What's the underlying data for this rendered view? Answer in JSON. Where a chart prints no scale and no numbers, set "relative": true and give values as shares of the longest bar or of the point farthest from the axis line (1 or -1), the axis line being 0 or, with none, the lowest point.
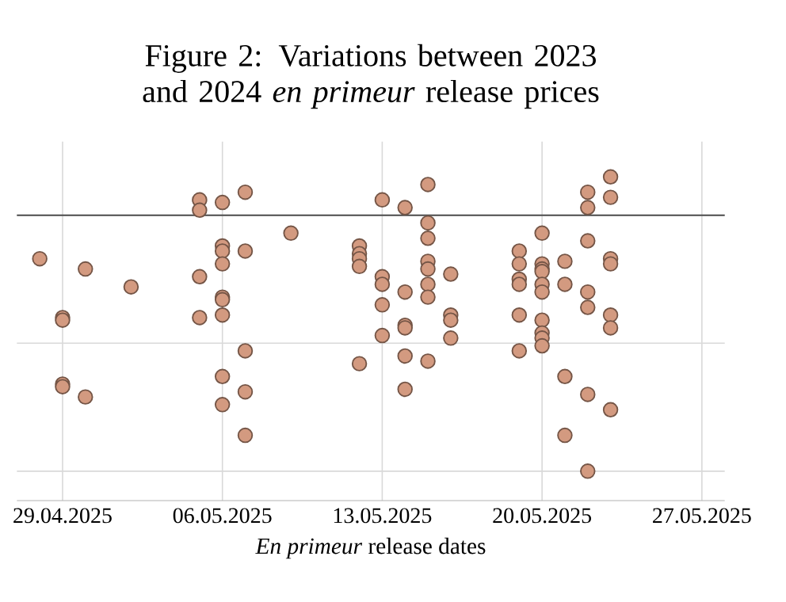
{
  "chart_data": {
    "type": "scatter",
    "title": "Figure 2: Variations between 2023 and 2024 *en primeur* release prices",
    "xlabel": "*En primeur* release dates",
    "relative": true,
    "grid": true,
    "color": "#d39a80",
    "xlim": [
      "2025-04-27",
      "2025-05-28"
    ],
    "xticks": [
      {
        "value": "2025-04-29",
        "label": "29.04.2025"
      },
      {
        "value": "2025-05-06",
        "label": "06.05.2025"
      },
      {
        "value": "2025-05-13",
        "label": "13.05.2025"
      },
      {
        "value": "2025-05-20",
        "label": "20.05.2025"
      },
      {
        "value": "2025-05-27",
        "label": "27.05.2025"
      }
    ],
    "x": [
      "2025-04-28",
      "2025-04-29",
      "2025-04-29",
      "2025-04-29",
      "2025-04-29",
      "2025-04-30",
      "2025-04-30",
      "2025-05-02",
      "2025-05-05",
      "2025-05-05",
      "2025-05-05",
      "2025-05-05",
      "2025-05-06",
      "2025-05-06",
      "2025-05-06",
      "2025-05-06",
      "2025-05-06",
      "2025-05-06",
      "2025-05-06",
      "2025-05-06",
      "2025-05-06",
      "2025-05-07",
      "2025-05-07",
      "2025-05-07",
      "2025-05-07",
      "2025-05-07",
      "2025-05-09",
      "2025-05-12",
      "2025-05-12",
      "2025-05-12",
      "2025-05-12",
      "2025-05-12",
      "2025-05-13",
      "2025-05-13",
      "2025-05-13",
      "2025-05-13",
      "2025-05-13",
      "2025-05-14",
      "2025-05-14",
      "2025-05-14",
      "2025-05-14",
      "2025-05-14",
      "2025-05-14",
      "2025-05-15",
      "2025-05-15",
      "2025-05-15",
      "2025-05-15",
      "2025-05-15",
      "2025-05-15",
      "2025-05-15",
      "2025-05-15",
      "2025-05-16",
      "2025-05-16",
      "2025-05-16",
      "2025-05-16",
      "2025-05-19",
      "2025-05-19",
      "2025-05-19",
      "2025-05-19",
      "2025-05-19",
      "2025-05-19",
      "2025-05-20",
      "2025-05-20",
      "2025-05-20",
      "2025-05-20",
      "2025-05-20",
      "2025-05-20",
      "2025-05-20",
      "2025-05-20",
      "2025-05-20",
      "2025-05-20",
      "2025-05-21",
      "2025-05-21",
      "2025-05-21",
      "2025-05-21",
      "2025-05-22",
      "2025-05-22",
      "2025-05-22",
      "2025-05-22",
      "2025-05-22",
      "2025-05-22",
      "2025-05-22",
      "2025-05-23",
      "2025-05-23",
      "2025-05-23",
      "2025-05-23",
      "2025-05-23",
      "2025-05-23",
      "2025-05-23"
    ],
    "values": [
      -0.17,
      -0.4,
      -0.41,
      -0.66,
      -0.67,
      -0.21,
      -0.71,
      -0.28,
      0.06,
      0.02,
      -0.24,
      -0.4,
      0.05,
      -0.12,
      -0.14,
      -0.19,
      -0.32,
      -0.33,
      -0.39,
      -0.63,
      -0.74,
      0.09,
      -0.14,
      -0.53,
      -0.69,
      -0.86,
      -0.07,
      -0.12,
      -0.15,
      -0.17,
      -0.2,
      -0.58,
      0.06,
      -0.24,
      -0.27,
      -0.35,
      -0.47,
      0.03,
      -0.3,
      -0.43,
      -0.44,
      -0.55,
      -0.68,
      0.12,
      -0.03,
      -0.09,
      -0.18,
      -0.21,
      -0.27,
      -0.32,
      -0.57,
      -0.23,
      -0.39,
      -0.41,
      -0.48,
      -0.14,
      -0.19,
      -0.25,
      -0.27,
      -0.39,
      -0.53,
      -0.07,
      -0.19,
      -0.21,
      -0.22,
      -0.27,
      -0.3,
      -0.41,
      -0.46,
      -0.48,
      -0.51,
      -0.18,
      -0.27,
      -0.63,
      -0.86,
      0.09,
      0.03,
      -0.1,
      -0.3,
      -0.36,
      -0.7,
      -1,
      0.15,
      0.07,
      -0.17,
      -0.19,
      -0.39,
      -0.44,
      -0.76
    ]
  }
}
